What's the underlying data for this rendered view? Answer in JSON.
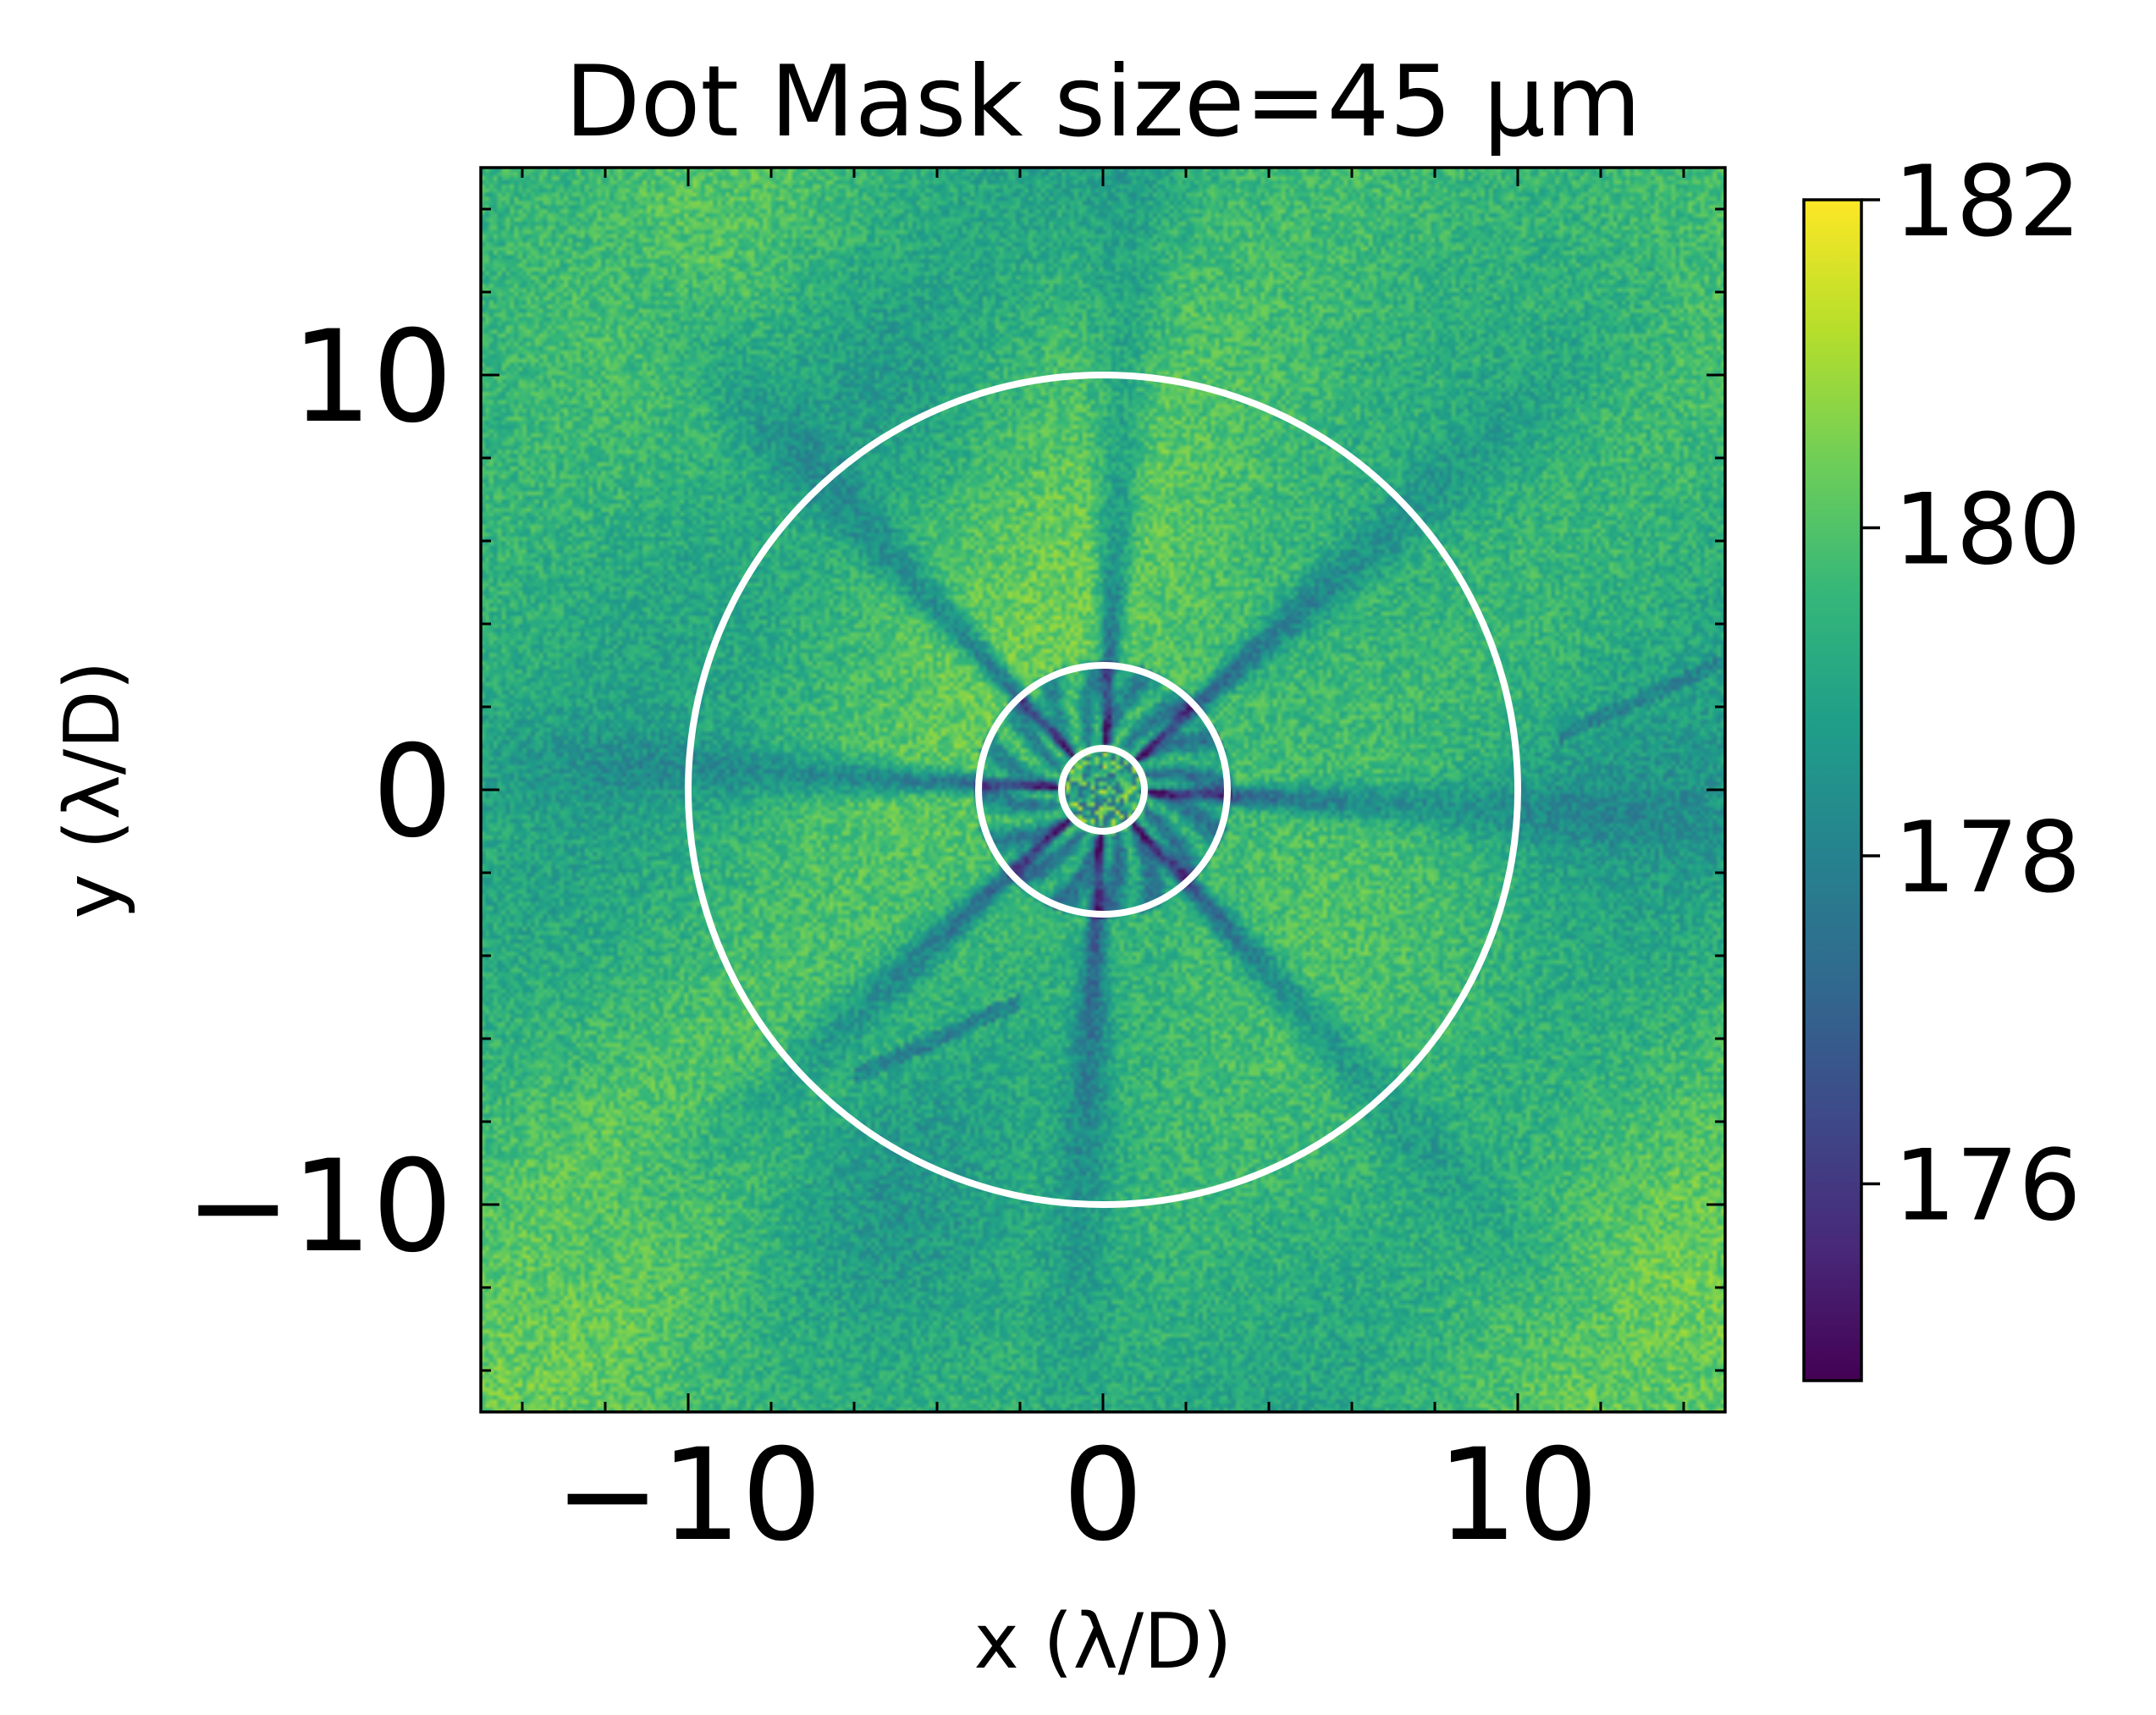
{
  "chart_data": {
    "type": "heatmap",
    "title": "Dot Mask size=45 μm",
    "xlabel": "x (λ/D)",
    "ylabel": "y (λ/D)",
    "xlim": [
      -15,
      15
    ],
    "ylim": [
      -15,
      15
    ],
    "x_ticks": [
      -10,
      0,
      10
    ],
    "y_ticks": [
      -10,
      0,
      10
    ],
    "x_tick_labels": [
      "−10",
      "0",
      "10"
    ],
    "y_tick_labels": [
      "−10",
      "0",
      "10"
    ],
    "minor_tick_step": 2,
    "colorbar": {
      "colormap": "viridis",
      "range": [
        174.8,
        182.0
      ],
      "ticks": [
        176,
        178,
        180,
        182
      ],
      "tick_labels": [
        "176",
        "178",
        "180",
        "182"
      ]
    },
    "field": {
      "background_level": 179.6,
      "num_spokes": 16,
      "dark_core_level": 175.2,
      "center_bright_level": 181.5
    },
    "circles": [
      {
        "center": [
          0,
          0
        ],
        "radius": 1.0,
        "color": "#ffffff"
      },
      {
        "center": [
          0,
          0
        ],
        "radius": 3.0,
        "color": "#ffffff"
      },
      {
        "center": [
          0,
          0
        ],
        "radius": 10.0,
        "color": "#ffffff"
      }
    ]
  },
  "colors": {
    "viridis_stops": [
      "#440154",
      "#482878",
      "#3e4989",
      "#31688e",
      "#26828e",
      "#1f9e89",
      "#35b779",
      "#6ece58",
      "#b5de2b",
      "#fde725"
    ],
    "circle_color": "#ffffff",
    "frame_color": "#000000"
  }
}
